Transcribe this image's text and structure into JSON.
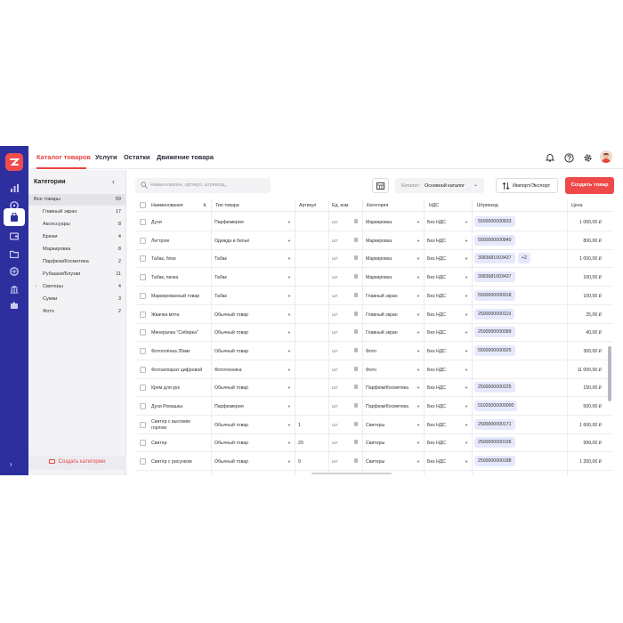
{
  "nav": {
    "tabs": [
      {
        "label": "Каталог товаров",
        "active": true
      },
      {
        "label": "Услуги"
      },
      {
        "label": "Остатки"
      },
      {
        "label": "Движение товара"
      }
    ]
  },
  "sidebar_rail": {
    "icons": [
      "chart-icon",
      "compass-icon",
      "bag-icon",
      "wallet-icon",
      "folder-icon",
      "circle-icon",
      "bank-icon",
      "puzzle-icon"
    ],
    "active_index": 2,
    "brand_color": "#2e2f9e",
    "accent_color": "#e94242"
  },
  "categories": {
    "title": "Категории",
    "items": [
      {
        "name": "Все товары",
        "count": "59",
        "selected": true
      },
      {
        "name": "Главный экран",
        "count": "17"
      },
      {
        "name": "Аксессуары",
        "count": "8"
      },
      {
        "name": "Брюки",
        "count": "4"
      },
      {
        "name": "Маркировка",
        "count": "8"
      },
      {
        "name": "Парфюм/Косметика",
        "count": "2"
      },
      {
        "name": "Рубашки/Блузки",
        "count": "11"
      },
      {
        "name": "Свитеры",
        "count": "4",
        "expandable": true
      },
      {
        "name": "Сумки",
        "count": "3"
      },
      {
        "name": "Фото",
        "count": "2"
      }
    ],
    "create_label": "Создать категорию"
  },
  "toolbar": {
    "search_placeholder": "Наименование, артикул, штрихкод...",
    "catalog_label": "Каталог:",
    "catalog_value": "Основной каталог",
    "import_label": "Импорт/Экспорт",
    "create_label": "Создать товар"
  },
  "table": {
    "columns": [
      "Наименование",
      "Тип товара",
      "Артикул",
      "Ед. изм.",
      "Категория",
      "НДС",
      "Штрихкод",
      "Цена"
    ],
    "rows": [
      {
        "name": "Духи",
        "type": "Парфюмерия",
        "article": "",
        "unit": "шт",
        "category": "Маркировка",
        "vat": "Без НДС",
        "barcode": "5500000000833",
        "extra": "",
        "price": "1 000,00 ₽"
      },
      {
        "name": "Легтром",
        "type": "Одежда и бельё",
        "article": "",
        "unit": "шт",
        "category": "Маркировка",
        "vat": "Без НДС",
        "barcode": "5500000000840",
        "extra": "",
        "price": "800,00 ₽"
      },
      {
        "name": "Табак, блок",
        "type": "Табак",
        "article": "",
        "unit": "шт",
        "category": "Маркировка",
        "vat": "Без НДС",
        "barcode": "3083681003437",
        "extra": "+2",
        "price": "1 000,00 ₽"
      },
      {
        "name": "Табак, пачка",
        "type": "Табак",
        "article": "",
        "unit": "шт",
        "category": "Маркировка",
        "vat": "Без НДС",
        "barcode": "3083681003437",
        "extra": "",
        "price": "100,00 ₽"
      },
      {
        "name": "Маркированный товар",
        "type": "Табак",
        "article": "",
        "unit": "шт",
        "category": "Главный экран",
        "vat": "Без НДС",
        "barcode": "5500000000918",
        "extra": "",
        "price": "100,00 ₽"
      },
      {
        "name": "Жвачка мята",
        "type": "Обычный товар",
        "article": "",
        "unit": "шт",
        "category": "Главный экран",
        "vat": "Без НДС",
        "barcode": "2500000000119",
        "extra": "",
        "price": "25,00 ₽"
      },
      {
        "name": "Минералка \"Сибирка\"",
        "type": "Обычный товар",
        "article": "",
        "unit": "шт",
        "category": "Главный экран",
        "vat": "Без НДС",
        "barcode": "2500000000089",
        "extra": "",
        "price": "40,00 ₽"
      },
      {
        "name": "Фотоплёнка 35мм",
        "type": "Обычный товар",
        "article": "",
        "unit": "шт",
        "category": "Фото",
        "vat": "Без НДС",
        "barcode": "5500000000925",
        "extra": "",
        "price": "300,00 ₽"
      },
      {
        "name": "Фотоаппарат цифровой",
        "type": "Фототехника",
        "article": "",
        "unit": "шт",
        "category": "Фото",
        "vat": "Без НДС",
        "barcode": "",
        "extra": "",
        "price": "11 000,00 ₽"
      },
      {
        "name": "Крем для рук",
        "type": "Обычный товар",
        "article": "",
        "unit": "шт",
        "category": "Парфюм/Косметика",
        "vat": "Без НДС",
        "barcode": "2500000000225",
        "extra": "",
        "price": "150,00 ₽"
      },
      {
        "name": "Духи Ромашка",
        "type": "Парфюмерия",
        "article": "",
        "unit": "шт",
        "category": "Парфюм/Косметика",
        "vat": "Без НДС",
        "barcode": "01025000000000",
        "extra": "",
        "price": "500,00 ₽"
      },
      {
        "name": "Свитер с высоким горлом",
        "type": "Обычный товар",
        "article": "1",
        "unit": "шт",
        "category": "Свитеры",
        "vat": "Без НДС",
        "barcode": "2500000000171",
        "extra": "",
        "price": "1 600,00 ₽"
      },
      {
        "name": "Свитер",
        "type": "Обычный товар",
        "article": "20",
        "unit": "шт",
        "category": "Свитеры",
        "vat": "Без НДС",
        "barcode": "2500000000195",
        "extra": "",
        "price": "999,00 ₽"
      },
      {
        "name": "Свитер с рисунком",
        "type": "Обычный товар",
        "article": "9",
        "unit": "шт",
        "category": "Свитеры",
        "vat": "Без НДС",
        "barcode": "2500000000188",
        "extra": "",
        "price": "1 200,00 ₽"
      }
    ]
  }
}
